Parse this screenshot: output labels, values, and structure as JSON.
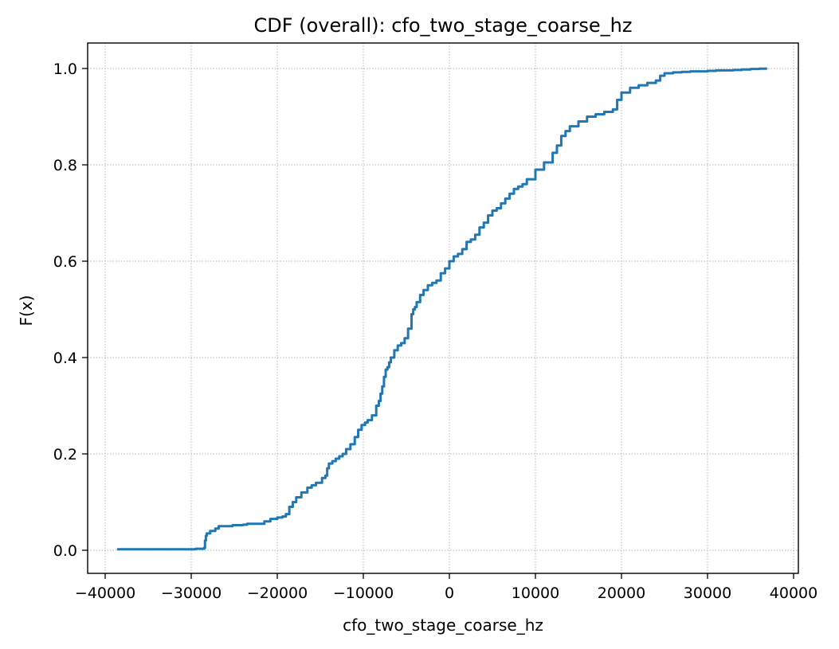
{
  "chart_data": {
    "type": "line",
    "title": "CDF (overall): cfo_two_stage_coarse_hz",
    "xlabel": "cfo_two_stage_coarse_hz",
    "ylabel": "F(x)",
    "xlim": [
      -40000,
      40000
    ],
    "ylim": [
      0.0,
      1.0
    ],
    "x_ticks": [
      -40000,
      -30000,
      -20000,
      -10000,
      0,
      10000,
      20000,
      30000,
      40000
    ],
    "x_tick_labels": [
      "−40000",
      "−30000",
      "−20000",
      "−10000",
      "0",
      "10000",
      "20000",
      "30000",
      "40000"
    ],
    "y_ticks": [
      0.0,
      0.2,
      0.4,
      0.6,
      0.8,
      1.0
    ],
    "y_tick_labels": [
      "0.0",
      "0.2",
      "0.4",
      "0.6",
      "0.8",
      "1.0"
    ],
    "grid": true,
    "colors": {
      "line": "#1f77b4",
      "grid": "#b0b0b0"
    },
    "series": [
      {
        "x": [
          -38500,
          -32500,
          -29500,
          -28500,
          -28400,
          -28300,
          -28200,
          -27800,
          -27200,
          -26800,
          -26500,
          -25200,
          -24000,
          -23500,
          -21500,
          -20800,
          -20000,
          -19400,
          -19000,
          -18600,
          -18200,
          -17800,
          -17200,
          -16500,
          -16000,
          -15500,
          -14800,
          -14400,
          -14200,
          -14000,
          -13600,
          -13200,
          -12800,
          -12400,
          -12000,
          -11500,
          -11000,
          -10600,
          -10200,
          -9800,
          -9500,
          -9000,
          -8500,
          -8200,
          -8000,
          -7800,
          -7600,
          -7400,
          -7200,
          -7000,
          -6800,
          -6400,
          -6000,
          -5600,
          -5200,
          -4800,
          -4400,
          -4200,
          -4000,
          -3800,
          -3400,
          -3000,
          -2500,
          -2000,
          -1500,
          -1000,
          -500,
          0,
          500,
          1000,
          1500,
          2000,
          2500,
          3000,
          3500,
          4000,
          4500,
          5000,
          5500,
          6000,
          6500,
          7000,
          7500,
          8000,
          8500,
          9000,
          10000,
          11000,
          12000,
          12500,
          13000,
          13500,
          14000,
          15000,
          16000,
          17000,
          18000,
          19000,
          19500,
          20000,
          21000,
          22000,
          23000,
          24000,
          24500,
          25000,
          26000,
          27000,
          28000,
          30000,
          31000,
          32000,
          33000,
          34000,
          35000,
          36000,
          36800
        ],
        "y": [
          0.002,
          0.002,
          0.003,
          0.005,
          0.02,
          0.03,
          0.035,
          0.04,
          0.045,
          0.05,
          0.05,
          0.052,
          0.053,
          0.055,
          0.06,
          0.065,
          0.068,
          0.07,
          0.075,
          0.09,
          0.1,
          0.11,
          0.12,
          0.13,
          0.135,
          0.14,
          0.15,
          0.155,
          0.17,
          0.18,
          0.185,
          0.19,
          0.195,
          0.2,
          0.21,
          0.22,
          0.235,
          0.25,
          0.26,
          0.265,
          0.27,
          0.28,
          0.3,
          0.31,
          0.325,
          0.34,
          0.36,
          0.375,
          0.38,
          0.39,
          0.4,
          0.415,
          0.425,
          0.43,
          0.44,
          0.46,
          0.49,
          0.5,
          0.505,
          0.515,
          0.53,
          0.54,
          0.55,
          0.555,
          0.56,
          0.575,
          0.585,
          0.6,
          0.61,
          0.615,
          0.625,
          0.64,
          0.645,
          0.655,
          0.67,
          0.68,
          0.695,
          0.705,
          0.71,
          0.72,
          0.73,
          0.74,
          0.75,
          0.755,
          0.76,
          0.77,
          0.79,
          0.805,
          0.825,
          0.84,
          0.86,
          0.87,
          0.88,
          0.89,
          0.9,
          0.905,
          0.91,
          0.915,
          0.935,
          0.95,
          0.96,
          0.965,
          0.97,
          0.975,
          0.985,
          0.99,
          0.992,
          0.993,
          0.994,
          0.995,
          0.996,
          0.996,
          0.997,
          0.998,
          0.999,
          0.9995,
          1.0
        ]
      }
    ]
  }
}
